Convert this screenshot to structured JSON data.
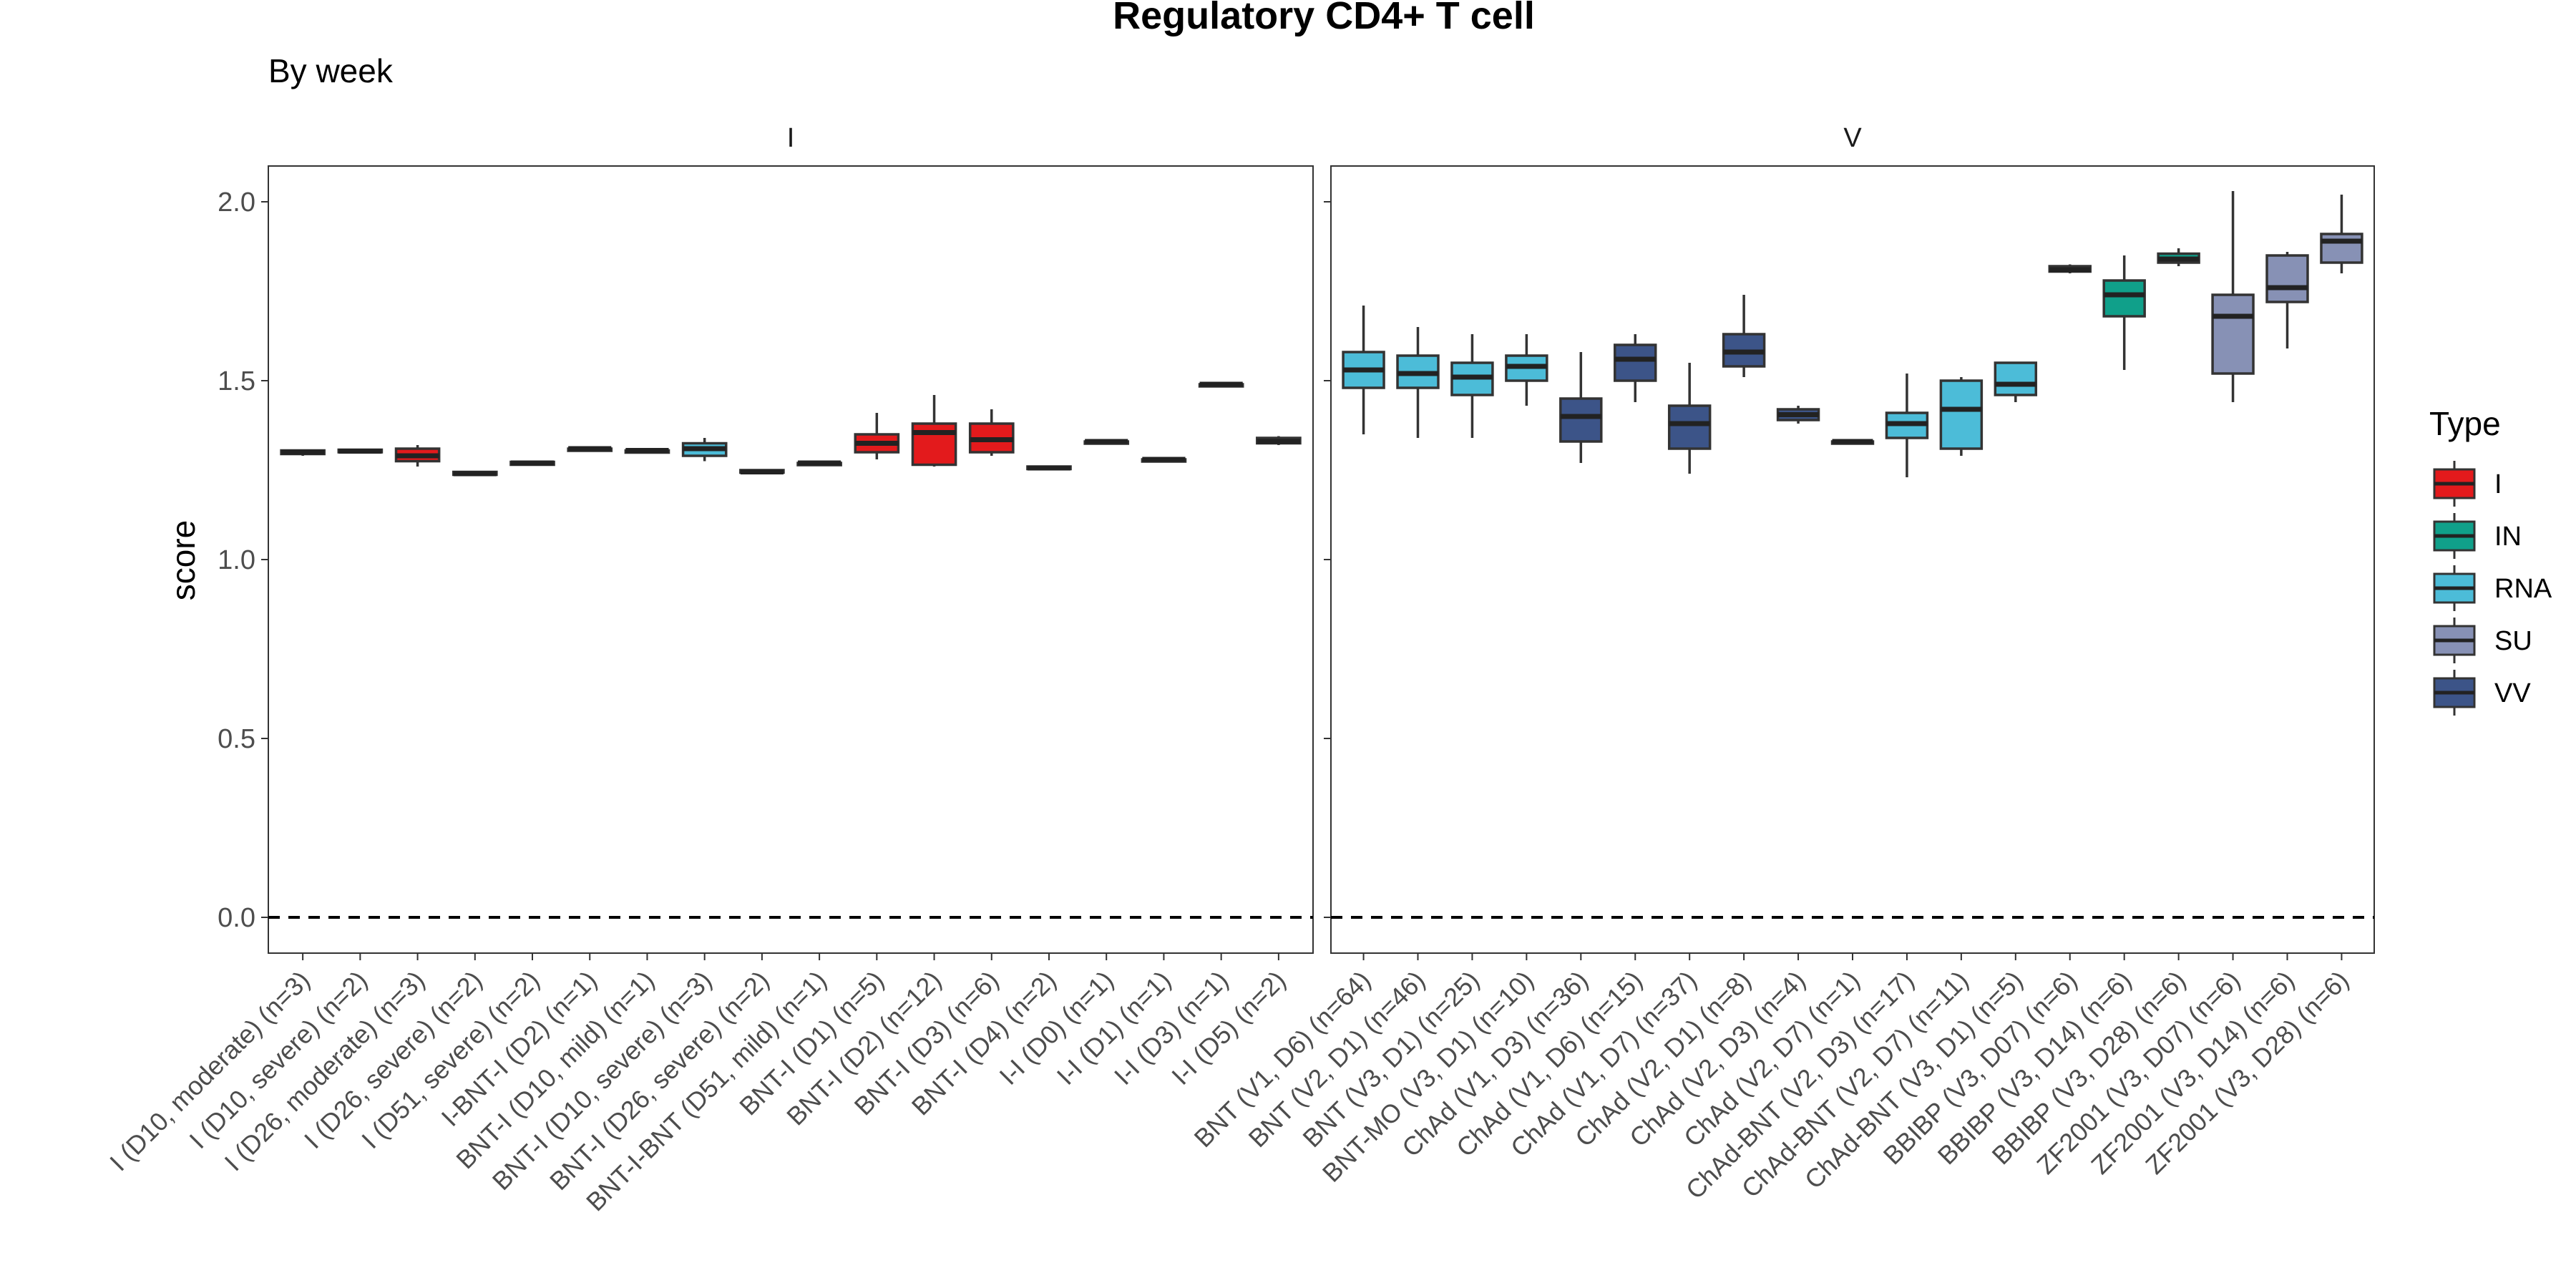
{
  "chart_data": {
    "type": "box",
    "title": "Regulatory CD4+ T cell",
    "subtitle": "By week",
    "ylabel": "score",
    "xlabel": "",
    "ylim": [
      -0.1,
      2.1
    ],
    "yticks": [
      0.0,
      0.5,
      1.0,
      1.5,
      2.0
    ],
    "ytick_labels": [
      "0.0",
      "0.5",
      "1.0",
      "1.5",
      "2.0"
    ],
    "reference_line": 0,
    "legend": {
      "title": "Type",
      "position": "right",
      "entries": [
        {
          "name": "I",
          "color": "#e31a1c"
        },
        {
          "name": "IN",
          "color": "#10a08a"
        },
        {
          "name": "RNA",
          "color": "#4cbcd8"
        },
        {
          "name": "SU",
          "color": "#8791b5"
        },
        {
          "name": "VV",
          "color": "#3c5488"
        }
      ]
    },
    "panels": [
      {
        "strip": "I",
        "groups": [
          {
            "label": "I (D10, moderate) (n=3)",
            "type": "I",
            "q1": 1.295,
            "median": 1.3,
            "q3": 1.305,
            "lo": 1.29,
            "hi": 1.305
          },
          {
            "label": "I (D10, severe) (n=2)",
            "type": "I",
            "q1": 1.3,
            "median": 1.303,
            "q3": 1.307,
            "lo": 1.3,
            "hi": 1.307
          },
          {
            "label": "I (D26, moderate) (n=3)",
            "type": "I",
            "q1": 1.275,
            "median": 1.29,
            "q3": 1.31,
            "lo": 1.26,
            "hi": 1.32
          },
          {
            "label": "I (D26, severe) (n=2)",
            "type": "I",
            "q1": 1.237,
            "median": 1.24,
            "q3": 1.245,
            "lo": 1.237,
            "hi": 1.245
          },
          {
            "label": "I (D51, severe) (n=2)",
            "type": "I",
            "q1": 1.265,
            "median": 1.27,
            "q3": 1.273,
            "lo": 1.265,
            "hi": 1.273
          },
          {
            "label": "I-BNT-I (D2) (n=1)",
            "type": "I",
            "q1": 1.31,
            "median": 1.31,
            "q3": 1.31,
            "lo": 1.31,
            "hi": 1.31
          },
          {
            "label": "BNT-I (D10, mild) (n=1)",
            "type": "I",
            "q1": 1.305,
            "median": 1.305,
            "q3": 1.305,
            "lo": 1.305,
            "hi": 1.305
          },
          {
            "label": "BNT-I (D10, severe) (n=3)",
            "type": "RNA",
            "q1": 1.29,
            "median": 1.31,
            "q3": 1.325,
            "lo": 1.275,
            "hi": 1.34
          },
          {
            "label": "BNT-I (D26, severe) (n=2)",
            "type": "I",
            "q1": 1.243,
            "median": 1.245,
            "q3": 1.25,
            "lo": 1.243,
            "hi": 1.25
          },
          {
            "label": "BNT-I-BNT (D51, mild) (n=1)",
            "type": "I",
            "q1": 1.27,
            "median": 1.27,
            "q3": 1.27,
            "lo": 1.27,
            "hi": 1.27
          },
          {
            "label": "BNT-I (D1) (n=5)",
            "type": "I",
            "q1": 1.3,
            "median": 1.325,
            "q3": 1.35,
            "lo": 1.28,
            "hi": 1.41
          },
          {
            "label": "BNT-I (D2) (n=12)",
            "type": "I",
            "q1": 1.265,
            "median": 1.355,
            "q3": 1.38,
            "lo": 1.26,
            "hi": 1.46
          },
          {
            "label": "BNT-I (D3) (n=6)",
            "type": "I",
            "q1": 1.3,
            "median": 1.335,
            "q3": 1.38,
            "lo": 1.29,
            "hi": 1.42
          },
          {
            "label": "BNT-I (D4) (n=2)",
            "type": "I",
            "q1": 1.253,
            "median": 1.256,
            "q3": 1.26,
            "lo": 1.253,
            "hi": 1.26
          },
          {
            "label": "I-I (D0) (n=1)",
            "type": "I",
            "q1": 1.33,
            "median": 1.33,
            "q3": 1.33,
            "lo": 1.33,
            "hi": 1.33
          },
          {
            "label": "I-I (D1) (n=1)",
            "type": "I",
            "q1": 1.28,
            "median": 1.28,
            "q3": 1.28,
            "lo": 1.28,
            "hi": 1.28
          },
          {
            "label": "I-I (D3) (n=1)",
            "type": "I",
            "q1": 1.49,
            "median": 1.49,
            "q3": 1.49,
            "lo": 1.49,
            "hi": 1.49
          },
          {
            "label": "I-I (D5) (n=2)",
            "type": "I",
            "q1": 1.325,
            "median": 1.33,
            "q3": 1.34,
            "lo": 1.32,
            "hi": 1.345
          }
        ]
      },
      {
        "strip": "V",
        "groups": [
          {
            "label": "BNT (V1, D6) (n=64)",
            "type": "RNA",
            "q1": 1.48,
            "median": 1.53,
            "q3": 1.58,
            "lo": 1.35,
            "hi": 1.71
          },
          {
            "label": "BNT (V2, D1) (n=46)",
            "type": "RNA",
            "q1": 1.48,
            "median": 1.52,
            "q3": 1.57,
            "lo": 1.34,
            "hi": 1.65
          },
          {
            "label": "BNT (V3, D1) (n=25)",
            "type": "RNA",
            "q1": 1.46,
            "median": 1.51,
            "q3": 1.55,
            "lo": 1.34,
            "hi": 1.63
          },
          {
            "label": "BNT-MO (V3, D1) (n=10)",
            "type": "RNA",
            "q1": 1.5,
            "median": 1.54,
            "q3": 1.57,
            "lo": 1.43,
            "hi": 1.63
          },
          {
            "label": "ChAd (V1, D3) (n=36)",
            "type": "VV",
            "q1": 1.33,
            "median": 1.4,
            "q3": 1.45,
            "lo": 1.27,
            "hi": 1.58
          },
          {
            "label": "ChAd (V1, D6) (n=15)",
            "type": "VV",
            "q1": 1.5,
            "median": 1.56,
            "q3": 1.6,
            "lo": 1.44,
            "hi": 1.63
          },
          {
            "label": "ChAd (V1, D7) (n=37)",
            "type": "VV",
            "q1": 1.31,
            "median": 1.38,
            "q3": 1.43,
            "lo": 1.24,
            "hi": 1.55
          },
          {
            "label": "ChAd (V2, D1) (n=8)",
            "type": "VV",
            "q1": 1.54,
            "median": 1.58,
            "q3": 1.63,
            "lo": 1.51,
            "hi": 1.74
          },
          {
            "label": "ChAd (V2, D3) (n=4)",
            "type": "VV",
            "q1": 1.39,
            "median": 1.405,
            "q3": 1.42,
            "lo": 1.38,
            "hi": 1.43
          },
          {
            "label": "ChAd (V2, D7) (n=1)",
            "type": "VV",
            "q1": 1.33,
            "median": 1.33,
            "q3": 1.33,
            "lo": 1.33,
            "hi": 1.33
          },
          {
            "label": "ChAd-BNT (V2, D3) (n=17)",
            "type": "RNA",
            "q1": 1.34,
            "median": 1.38,
            "q3": 1.41,
            "lo": 1.23,
            "hi": 1.52
          },
          {
            "label": "ChAd-BNT (V2, D7) (n=11)",
            "type": "RNA",
            "q1": 1.31,
            "median": 1.42,
            "q3": 1.5,
            "lo": 1.29,
            "hi": 1.51
          },
          {
            "label": "ChAd-BNT (V3, D1) (n=5)",
            "type": "RNA",
            "q1": 1.46,
            "median": 1.49,
            "q3": 1.55,
            "lo": 1.44,
            "hi": 1.55
          },
          {
            "label": "BBIBP (V3, D07) (n=6)",
            "type": "SU",
            "q1": 1.805,
            "median": 1.81,
            "q3": 1.82,
            "lo": 1.8,
            "hi": 1.825
          },
          {
            "label": "BBIBP (V3, D14) (n=6)",
            "type": "IN",
            "q1": 1.68,
            "median": 1.74,
            "q3": 1.78,
            "lo": 1.53,
            "hi": 1.85
          },
          {
            "label": "BBIBP (V3, D28) (n=6)",
            "type": "IN",
            "q1": 1.83,
            "median": 1.84,
            "q3": 1.855,
            "lo": 1.82,
            "hi": 1.87
          },
          {
            "label": "ZF2001 (V3, D07) (n=6)",
            "type": "SU",
            "q1": 1.52,
            "median": 1.68,
            "q3": 1.74,
            "lo": 1.44,
            "hi": 2.03
          },
          {
            "label": "ZF2001 (V3, D14) (n=6)",
            "type": "SU",
            "q1": 1.72,
            "median": 1.76,
            "q3": 1.85,
            "lo": 1.59,
            "hi": 1.86
          },
          {
            "label": "ZF2001 (V3, D28) (n=6)",
            "type": "SU",
            "q1": 1.83,
            "median": 1.89,
            "q3": 1.91,
            "lo": 1.8,
            "hi": 2.02
          }
        ]
      }
    ]
  }
}
